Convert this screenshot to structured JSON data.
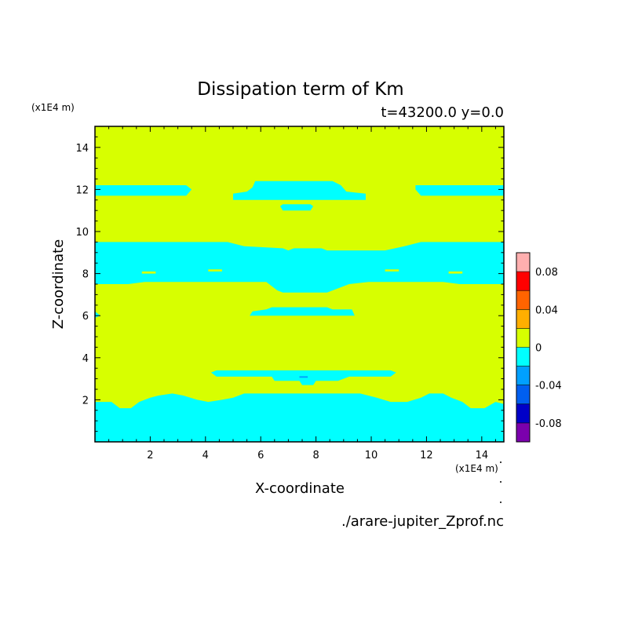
{
  "chart_data": {
    "type": "heatmap",
    "title": "Dissipation term of Km",
    "subtitle": "t=43200.0 y=0.0",
    "xlabel": "X-coordinate",
    "ylabel": "Z-coordinate",
    "x_unit": "(x1E4 m)",
    "y_unit": "(x1E4 m)",
    "xlim": [
      0,
      14.8
    ],
    "ylim": [
      0,
      15
    ],
    "x_ticks": [
      2,
      4,
      6,
      8,
      10,
      12,
      14
    ],
    "y_ticks": [
      2,
      4,
      6,
      8,
      10,
      12,
      14
    ],
    "grid": false,
    "background_level": "0 to 0.02",
    "background_color": "#d7ff00",
    "colorbar": {
      "placement": "right",
      "levels": [
        -0.1,
        -0.08,
        -0.06,
        -0.04,
        -0.02,
        0,
        0.02,
        0.04,
        0.06,
        0.08,
        0.1
      ],
      "colors": [
        "#7b00ad",
        "#0000c8",
        "#005ff0",
        "#00a0ff",
        "#00ffff",
        "#d7ff00",
        "#ffaf00",
        "#ff6400",
        "#ff0000",
        "#ffafaf"
      ],
      "labels": [
        "0.08",
        "0.04",
        "0",
        "-0.04",
        "-0.08"
      ],
      "label_values": [
        0.08,
        0.04,
        0,
        -0.04,
        -0.08
      ]
    },
    "regions": [
      {
        "level": "-0.02 to 0",
        "color": "#00ffff",
        "polygon": [
          [
            0,
            0
          ],
          [
            14.8,
            0
          ],
          [
            14.8,
            1.8
          ],
          [
            14.5,
            1.9
          ],
          [
            14.1,
            1.6
          ],
          [
            13.6,
            1.6
          ],
          [
            13.3,
            1.9
          ],
          [
            12.9,
            2.1
          ],
          [
            12.6,
            2.3
          ],
          [
            12.1,
            2.3
          ],
          [
            11.8,
            2.1
          ],
          [
            11.3,
            1.9
          ],
          [
            10.7,
            1.9
          ],
          [
            10.2,
            2.1
          ],
          [
            9.6,
            2.3
          ],
          [
            5.4,
            2.3
          ],
          [
            5.0,
            2.1
          ],
          [
            4.6,
            2.0
          ],
          [
            4.1,
            1.9
          ],
          [
            3.7,
            2.0
          ],
          [
            3.2,
            2.2
          ],
          [
            2.8,
            2.3
          ],
          [
            2.3,
            2.2
          ],
          [
            2.0,
            2.1
          ],
          [
            1.6,
            1.9
          ],
          [
            1.3,
            1.6
          ],
          [
            0.9,
            1.6
          ],
          [
            0.6,
            1.9
          ],
          [
            0,
            1.9
          ]
        ]
      },
      {
        "level": "-0.02 to 0",
        "color": "#00ffff",
        "polygon": [
          [
            0,
            7.5
          ],
          [
            1.2,
            7.5
          ],
          [
            1.8,
            7.6
          ],
          [
            6.2,
            7.6
          ],
          [
            6.6,
            7.2
          ],
          [
            6.8,
            7.1
          ],
          [
            8.4,
            7.1
          ],
          [
            9.2,
            7.5
          ],
          [
            9.9,
            7.6
          ],
          [
            12.6,
            7.6
          ],
          [
            13.2,
            7.5
          ],
          [
            14.8,
            7.5
          ],
          [
            14.8,
            9.5
          ],
          [
            11.8,
            9.5
          ],
          [
            11.2,
            9.3
          ],
          [
            10.5,
            9.1
          ],
          [
            8.4,
            9.1
          ],
          [
            8.2,
            9.2
          ],
          [
            7.2,
            9.2
          ],
          [
            7.0,
            9.1
          ],
          [
            6.8,
            9.2
          ],
          [
            5.4,
            9.3
          ],
          [
            4.8,
            9.5
          ],
          [
            0,
            9.5
          ]
        ]
      },
      {
        "level": "-0.02 to 0",
        "color": "#00ffff",
        "polygon": [
          [
            0,
            11.7
          ],
          [
            3.3,
            11.7
          ],
          [
            3.5,
            12.0
          ],
          [
            3.3,
            12.2
          ],
          [
            0,
            12.2
          ]
        ]
      },
      {
        "level": "-0.02 to 0",
        "color": "#00ffff",
        "polygon": [
          [
            11.6,
            12.2
          ],
          [
            14.8,
            12.2
          ],
          [
            14.8,
            11.7
          ],
          [
            11.8,
            11.7
          ],
          [
            11.6,
            12.0
          ]
        ]
      },
      {
        "level": "-0.02 to 0",
        "color": "#00ffff",
        "polygon": [
          [
            5.0,
            11.5
          ],
          [
            9.8,
            11.5
          ],
          [
            9.8,
            11.8
          ],
          [
            9.1,
            11.9
          ],
          [
            8.9,
            12.2
          ],
          [
            8.6,
            12.4
          ],
          [
            5.8,
            12.4
          ],
          [
            5.7,
            12.1
          ],
          [
            5.5,
            11.9
          ],
          [
            5.0,
            11.8
          ]
        ]
      },
      {
        "level": "-0.02 to 0",
        "color": "#00ffff",
        "polygon": [
          [
            6.8,
            11.0
          ],
          [
            7.8,
            11.0
          ],
          [
            7.9,
            11.2
          ],
          [
            7.8,
            11.3
          ],
          [
            6.8,
            11.3
          ],
          [
            6.7,
            11.2
          ]
        ]
      },
      {
        "level": "-0.02 to 0",
        "color": "#00ffff",
        "polygon": [
          [
            5.6,
            6.0
          ],
          [
            9.4,
            6.0
          ],
          [
            9.3,
            6.3
          ],
          [
            8.6,
            6.3
          ],
          [
            8.4,
            6.4
          ],
          [
            6.4,
            6.4
          ],
          [
            6.2,
            6.3
          ],
          [
            5.7,
            6.2
          ]
        ]
      },
      {
        "level": "-0.02 to 0",
        "color": "#00ffff",
        "polygon": [
          [
            4.4,
            3.1
          ],
          [
            6.4,
            3.1
          ],
          [
            6.5,
            2.9
          ],
          [
            7.4,
            2.9
          ],
          [
            7.5,
            2.7
          ],
          [
            7.9,
            2.7
          ],
          [
            8.0,
            2.9
          ],
          [
            8.8,
            2.9
          ],
          [
            9.2,
            3.1
          ],
          [
            10.7,
            3.1
          ],
          [
            10.9,
            3.3
          ],
          [
            10.7,
            3.4
          ],
          [
            4.4,
            3.4
          ],
          [
            4.2,
            3.3
          ]
        ]
      },
      {
        "level": "-0.02 to 0",
        "color": "#00ffff",
        "polygon": [
          [
            0,
            5.9
          ],
          [
            0.2,
            6.0
          ],
          [
            0,
            6.2
          ]
        ]
      },
      {
        "level": "0 to 0.02",
        "color": "#d7ff00",
        "polygon": [
          [
            1.7,
            8.0
          ],
          [
            2.2,
            8.0
          ],
          [
            2.2,
            8.1
          ],
          [
            1.7,
            8.1
          ]
        ]
      },
      {
        "level": "0 to 0.02",
        "color": "#d7ff00",
        "polygon": [
          [
            4.1,
            8.1
          ],
          [
            4.6,
            8.1
          ],
          [
            4.6,
            8.2
          ],
          [
            4.1,
            8.2
          ]
        ]
      },
      {
        "level": "0 to 0.02",
        "color": "#d7ff00",
        "polygon": [
          [
            10.5,
            8.1
          ],
          [
            11.0,
            8.1
          ],
          [
            11.0,
            8.2
          ],
          [
            10.5,
            8.2
          ]
        ]
      },
      {
        "level": "0 to 0.02",
        "color": "#d7ff00",
        "polygon": [
          [
            12.8,
            8.0
          ],
          [
            13.3,
            8.0
          ],
          [
            13.3,
            8.1
          ],
          [
            12.8,
            8.1
          ]
        ]
      },
      {
        "level": "-0.04 to -0.02",
        "color": "#00a0ff",
        "polygon": [
          [
            7.4,
            3.05
          ],
          [
            7.7,
            3.05
          ],
          [
            7.7,
            3.12
          ],
          [
            7.4,
            3.12
          ]
        ]
      }
    ]
  },
  "footer": {
    "source_file": "./arare-jupiter_Zprof.nc"
  }
}
